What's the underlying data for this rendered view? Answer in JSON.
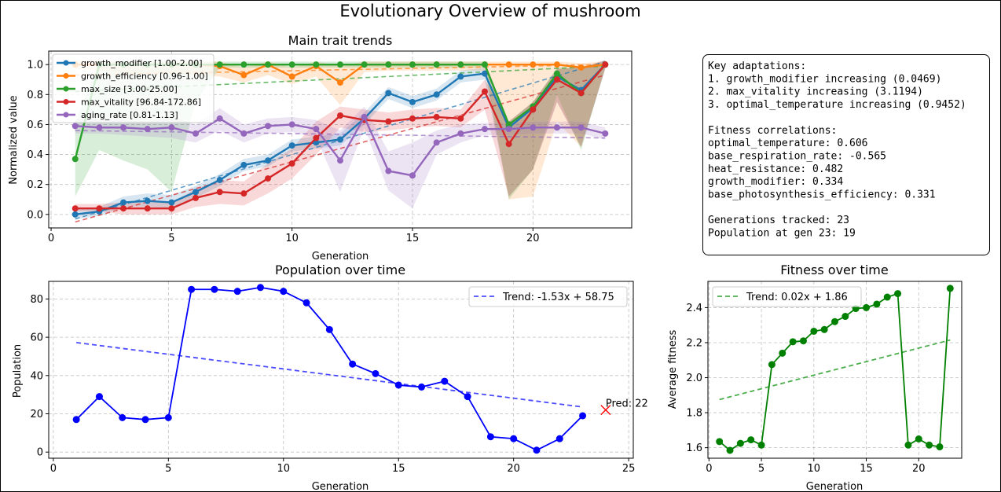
{
  "figure": {
    "title": "Evolutionary Overview of mushroom"
  },
  "info_box": {
    "lines": [
      "Key adaptations:",
      "1. growth_modifier increasing (0.0469)",
      "2. max_vitality increasing (3.1194)",
      "3. optimal_temperature increasing (0.9452)",
      "",
      "Fitness correlations:",
      "optimal_temperature: 0.606",
      "base_respiration_rate: -0.565",
      "heat_resistance: 0.482",
      "growth_modifier: 0.334",
      "base_photosynthesis_efficiency: 0.331",
      "",
      "Generations tracked: 23",
      "Population at gen 23: 19"
    ]
  },
  "chart_data": [
    {
      "id": "traits",
      "type": "line",
      "title": "Main trait trends",
      "xlabel": "Generation",
      "ylabel": "Normalized value",
      "xlim": [
        -0.1,
        24.1
      ],
      "ylim": [
        -0.09,
        1.09
      ],
      "xticks": [
        0,
        5,
        10,
        15,
        20
      ],
      "yticks": [
        0.0,
        0.2,
        0.4,
        0.6,
        0.8,
        1.0
      ],
      "ytick_labels": [
        "0.0",
        "0.2",
        "0.4",
        "0.6",
        "0.8",
        "1.0"
      ],
      "grid": true,
      "legend_position": "top-left",
      "x": [
        1,
        2,
        3,
        4,
        5,
        6,
        7,
        8,
        9,
        10,
        11,
        12,
        13,
        14,
        15,
        16,
        17,
        18,
        19,
        20,
        21,
        22,
        23
      ],
      "series": [
        {
          "name": "growth_modifier [1.00-2.00]",
          "color": "#1f77b4",
          "values": [
            0.0,
            0.02,
            0.08,
            0.09,
            0.08,
            0.15,
            0.23,
            0.33,
            0.36,
            0.46,
            0.48,
            0.5,
            0.64,
            0.81,
            0.75,
            0.8,
            0.92,
            0.94,
            0.58,
            0.71,
            0.92,
            0.83,
            1.0
          ],
          "band_low": [
            -0.03,
            -0.01,
            0.05,
            0.05,
            0.04,
            0.11,
            0.19,
            0.29,
            0.32,
            0.42,
            0.44,
            0.46,
            0.6,
            0.77,
            0.71,
            0.76,
            0.88,
            0.9,
            0.12,
            0.3,
            0.75,
            0.45,
            0.97
          ],
          "band_high": [
            0.03,
            0.05,
            0.12,
            0.14,
            0.13,
            0.19,
            0.27,
            0.37,
            0.4,
            0.5,
            0.52,
            0.54,
            0.68,
            0.85,
            0.79,
            0.84,
            0.96,
            0.98,
            0.62,
            0.75,
            0.97,
            0.98,
            1.03
          ],
          "trend": [
            -0.03,
            1.02
          ]
        },
        {
          "name": "growth_efficiency [0.96-1.00]",
          "color": "#ff7f0e",
          "values": [
            1.0,
            1.0,
            1.0,
            1.0,
            1.0,
            1.0,
            0.99,
            0.93,
            1.0,
            0.92,
            0.99,
            0.88,
            1.0,
            1.0,
            1.0,
            1.0,
            1.0,
            1.0,
            1.0,
            1.0,
            1.0,
            0.98,
            1.0
          ],
          "band_low": [
            0.97,
            0.96,
            0.94,
            0.94,
            0.95,
            0.93,
            0.92,
            0.88,
            0.93,
            0.87,
            0.92,
            0.73,
            0.95,
            0.96,
            0.96,
            0.96,
            0.96,
            0.96,
            0.1,
            0.12,
            0.62,
            0.45,
            0.98
          ],
          "band_high": [
            1.03,
            1.03,
            1.02,
            1.02,
            1.02,
            1.02,
            1.02,
            0.98,
            1.02,
            0.98,
            1.02,
            0.99,
            1.02,
            1.02,
            1.02,
            1.02,
            1.02,
            1.02,
            1.02,
            1.02,
            1.02,
            1.01,
            1.02
          ],
          "trend": [
            0.93,
            1.0
          ]
        },
        {
          "name": "max_size [3.00-25.00]",
          "color": "#2ca02c",
          "values": [
            0.37,
            1.0,
            1.0,
            1.0,
            1.0,
            1.0,
            1.0,
            1.0,
            1.0,
            1.0,
            1.0,
            1.0,
            1.0,
            1.0,
            1.0,
            1.0,
            1.0,
            1.0,
            0.6,
            0.72,
            0.94,
            0.81,
            1.0
          ],
          "band_low": [
            0.12,
            0.43,
            0.36,
            0.3,
            0.15,
            0.75,
            0.98,
            0.98,
            0.98,
            0.98,
            0.98,
            0.98,
            0.98,
            0.98,
            0.98,
            0.98,
            0.98,
            0.98,
            0.1,
            0.3,
            0.8,
            0.43,
            0.98
          ],
          "band_high": [
            0.62,
            1.02,
            1.02,
            1.02,
            1.02,
            1.02,
            1.02,
            1.02,
            1.02,
            1.02,
            1.02,
            1.02,
            1.02,
            1.02,
            1.02,
            1.02,
            1.02,
            1.02,
            0.62,
            0.75,
            0.98,
            0.98,
            1.02
          ],
          "trend": [
            0.82,
            0.99
          ]
        },
        {
          "name": "max_vitality [96.84-172.86]",
          "color": "#d62728",
          "values": [
            0.04,
            0.04,
            0.04,
            0.04,
            0.04,
            0.11,
            0.15,
            0.14,
            0.24,
            0.34,
            0.51,
            0.66,
            0.63,
            0.62,
            0.64,
            0.65,
            0.64,
            0.82,
            0.47,
            0.7,
            0.9,
            0.81,
            1.0
          ],
          "band_low": [
            0.02,
            0.02,
            0.0,
            0.0,
            0.0,
            0.05,
            0.07,
            0.06,
            0.14,
            0.24,
            0.4,
            0.58,
            0.55,
            0.56,
            0.58,
            0.59,
            0.58,
            0.7,
            0.12,
            0.3,
            0.75,
            0.45,
            0.97
          ],
          "band_high": [
            0.07,
            0.07,
            0.08,
            0.08,
            0.08,
            0.17,
            0.23,
            0.22,
            0.34,
            0.44,
            0.62,
            0.72,
            0.7,
            0.68,
            0.7,
            0.71,
            0.7,
            0.9,
            0.62,
            0.75,
            0.97,
            0.98,
            1.03
          ],
          "trend": [
            -0.05,
            0.93
          ]
        },
        {
          "name": "aging_rate [0.81-1.13]",
          "color": "#9467bd",
          "values": [
            0.59,
            0.58,
            0.58,
            0.57,
            0.58,
            0.54,
            0.64,
            0.54,
            0.59,
            0.6,
            0.57,
            0.36,
            0.65,
            0.29,
            0.26,
            0.48,
            0.54,
            0.57,
            0.57,
            0.58,
            0.58,
            0.58,
            0.54
          ],
          "band_low": [
            0.54,
            0.54,
            0.53,
            0.52,
            0.51,
            0.48,
            0.56,
            0.48,
            0.54,
            0.55,
            0.51,
            0.15,
            0.58,
            0.16,
            0.04,
            0.4,
            0.48,
            0.53,
            0.53,
            0.54,
            0.54,
            0.54,
            0.5
          ],
          "band_high": [
            0.64,
            0.63,
            0.63,
            0.62,
            0.65,
            0.6,
            0.71,
            0.6,
            0.64,
            0.65,
            0.63,
            0.56,
            0.72,
            0.42,
            0.48,
            0.56,
            0.6,
            0.61,
            0.61,
            0.62,
            0.62,
            0.62,
            0.58
          ],
          "trend": [
            0.56,
            0.51
          ]
        }
      ]
    },
    {
      "id": "population",
      "type": "line",
      "title": "Population over time",
      "xlabel": "Generation",
      "ylabel": "Population",
      "xlim": [
        -0.2,
        25.2
      ],
      "ylim": [
        -3.2,
        89.2
      ],
      "xticks": [
        0,
        5,
        10,
        15,
        20,
        25
      ],
      "yticks": [
        0,
        20,
        40,
        60,
        80
      ],
      "grid": true,
      "legend_position": "top-right",
      "series": [
        {
          "name": "",
          "color": "#0000ff",
          "x": [
            1,
            2,
            3,
            4,
            5,
            6,
            7,
            8,
            9,
            10,
            11,
            12,
            13,
            14,
            15,
            16,
            17,
            18,
            19,
            20,
            21,
            22,
            23
          ],
          "values": [
            17,
            29,
            18,
            17,
            18,
            85,
            85,
            84,
            86,
            84,
            78,
            64,
            46,
            41,
            35,
            34,
            37,
            29,
            8,
            7,
            1,
            7,
            19
          ]
        }
      ],
      "trend": {
        "label": "Trend: -1.53x + 58.75",
        "color": "#0000ff",
        "x": [
          1,
          23
        ],
        "values": [
          57.22,
          23.56
        ]
      },
      "prediction": {
        "x": 24,
        "value": 22,
        "label": "Pred: 22",
        "color": "#ff0000"
      }
    },
    {
      "id": "fitness",
      "type": "line",
      "title": "Fitness over time",
      "xlabel": "Generation",
      "ylabel": "Average fitness",
      "xlim": [
        -0.1,
        24.1
      ],
      "ylim": [
        1.54,
        2.55
      ],
      "xticks": [
        0,
        5,
        10,
        15,
        20
      ],
      "yticks": [
        1.6,
        1.8,
        2.0,
        2.2,
        2.4
      ],
      "ytick_labels": [
        "1.6",
        "1.8",
        "2.0",
        "2.2",
        "2.4"
      ],
      "grid": true,
      "legend_position": "top-left",
      "series": [
        {
          "name": "",
          "color": "#008000",
          "x": [
            1,
            2,
            3,
            4,
            5,
            6,
            7,
            8,
            9,
            10,
            11,
            12,
            13,
            14,
            15,
            16,
            17,
            18,
            19,
            20,
            21,
            22,
            23
          ],
          "values": [
            1.635,
            1.585,
            1.625,
            1.645,
            1.615,
            2.075,
            2.14,
            2.205,
            2.21,
            2.265,
            2.275,
            2.32,
            2.35,
            2.395,
            2.4,
            2.42,
            2.46,
            2.48,
            1.615,
            1.65,
            1.615,
            1.605,
            2.51
          ]
        }
      ],
      "trend": {
        "label": "Trend: 0.02x + 1.86",
        "color": "#2ca02c",
        "x": [
          1,
          23
        ],
        "values": [
          1.875,
          2.215
        ]
      }
    }
  ]
}
